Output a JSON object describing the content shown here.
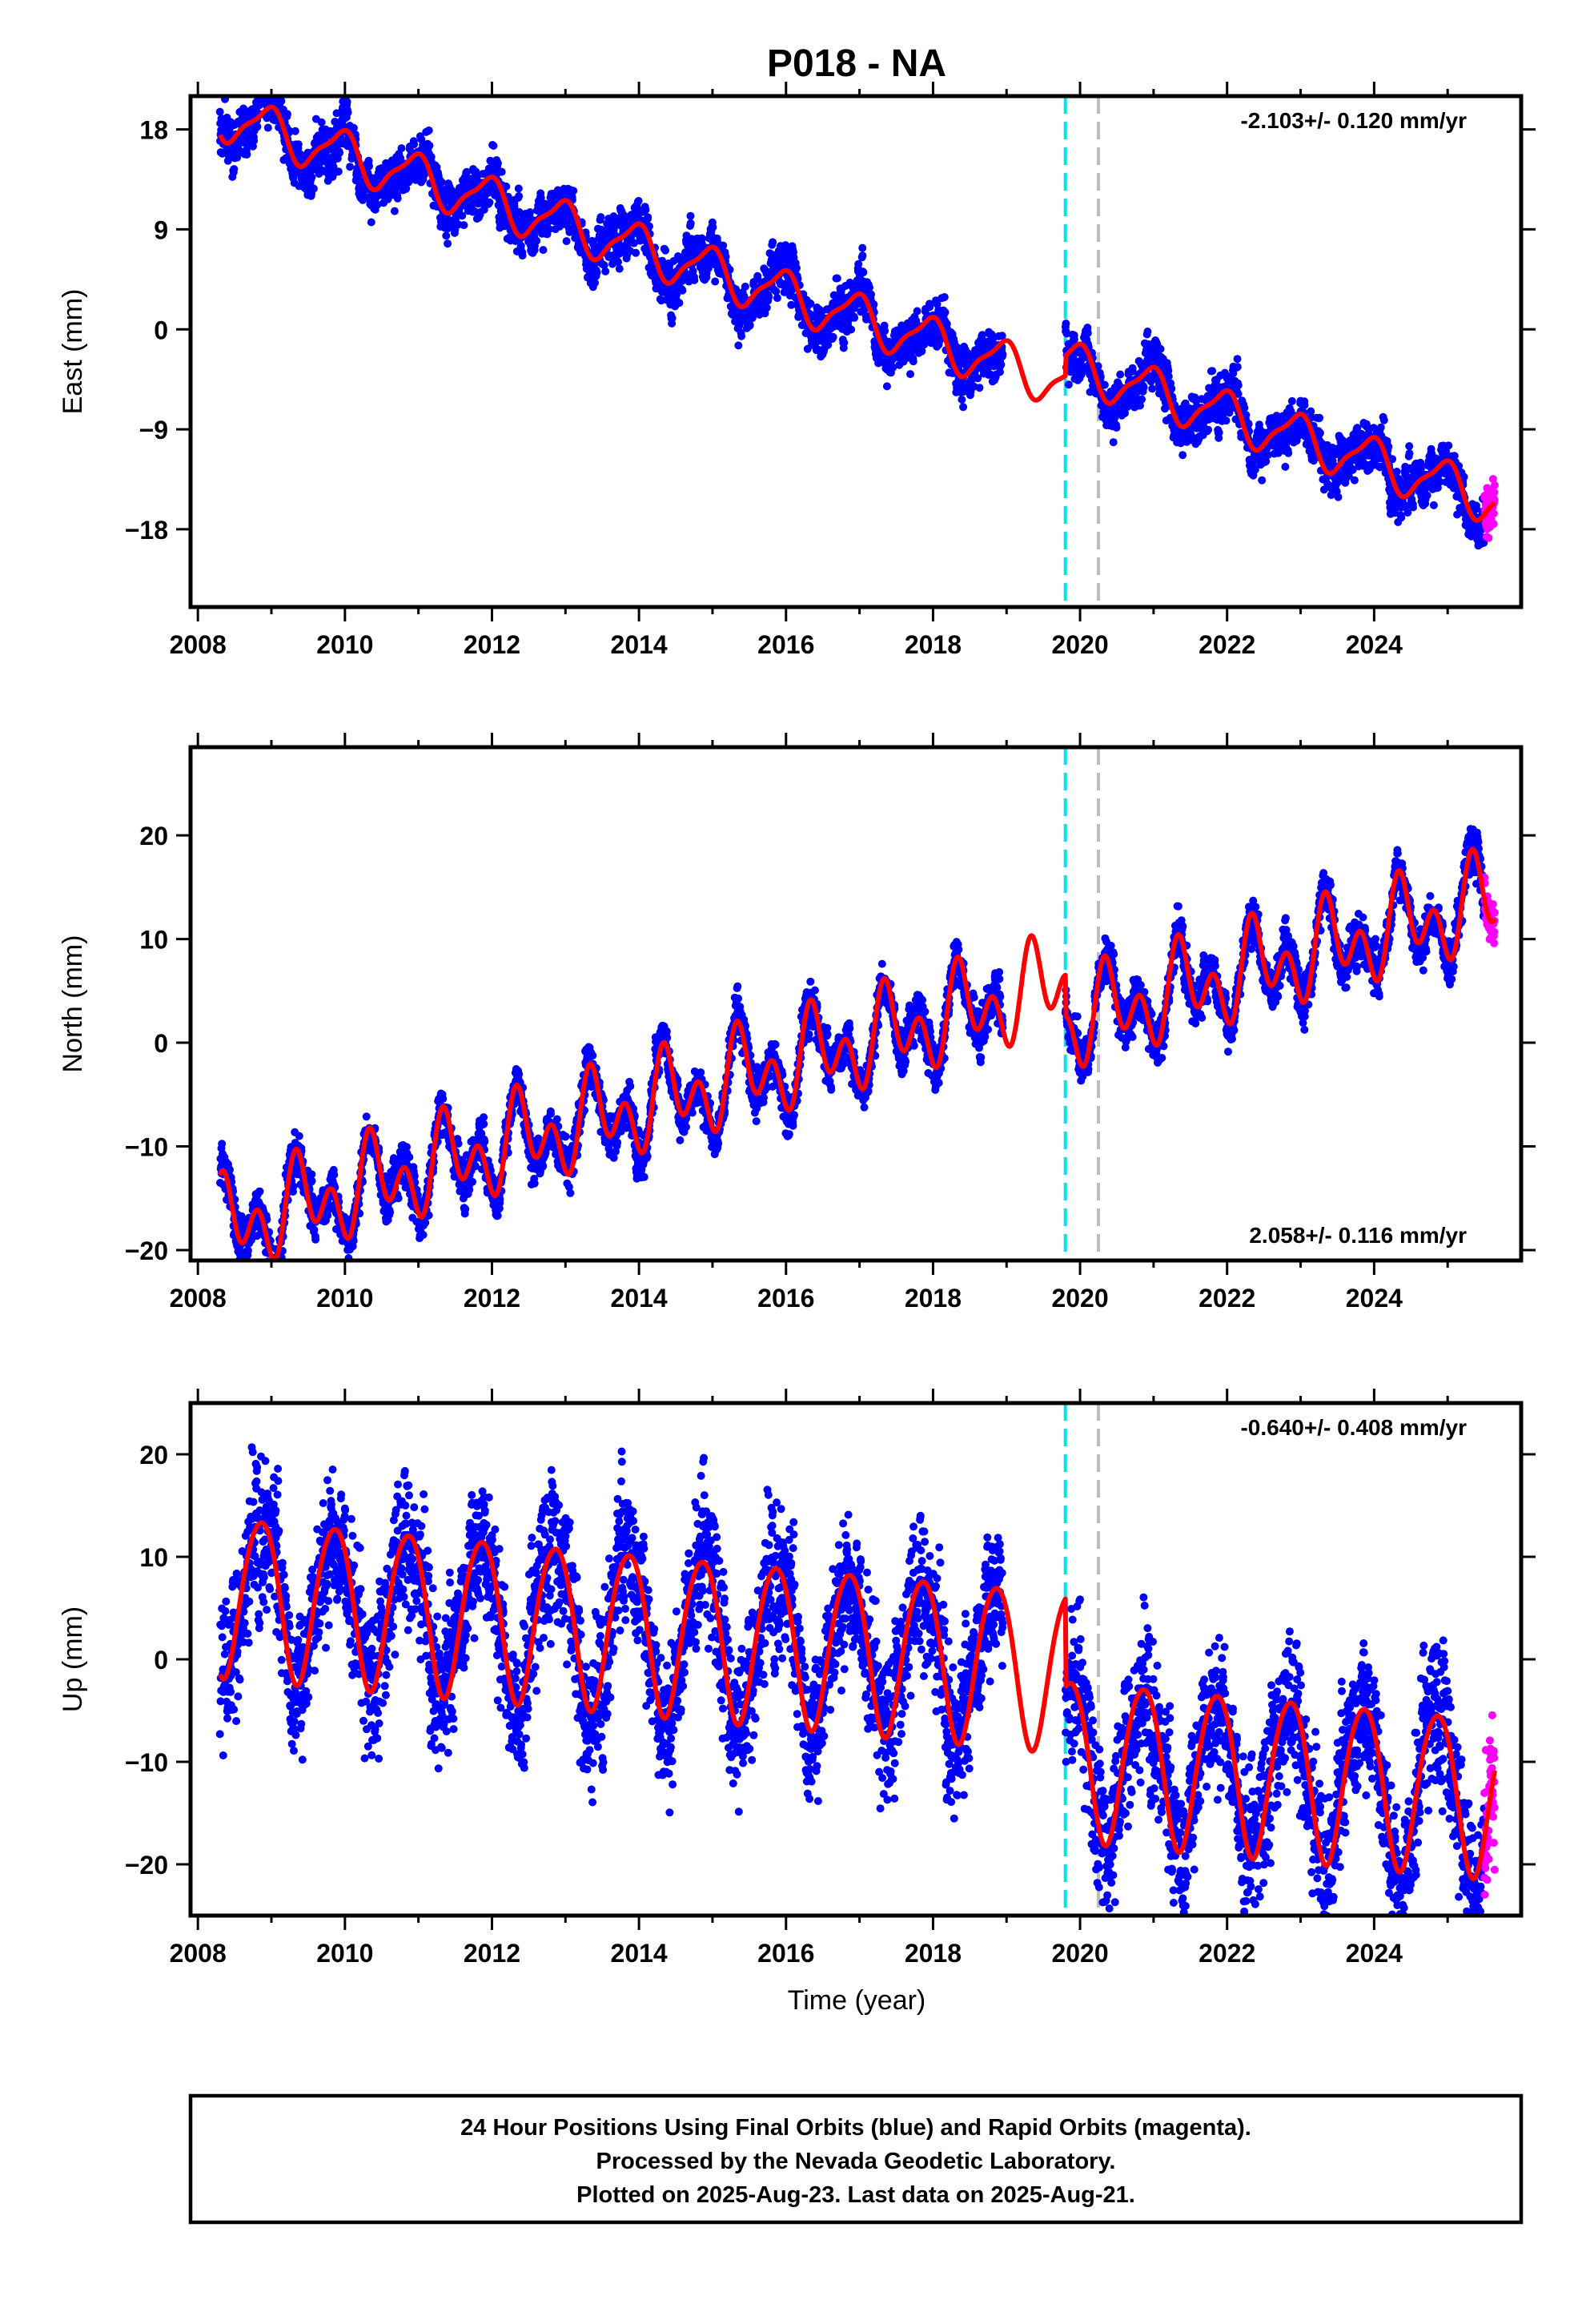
{
  "figure": {
    "title": "P018 - NA",
    "xlabel": "Time (year)",
    "footer_lines": [
      "24 Hour Positions Using Final Orbits (blue) and Rapid Orbits (magenta).",
      "Processed by the Nevada Geodetic Laboratory.",
      "Plotted on 2025-Aug-23. Last data on 2025-Aug-21."
    ],
    "colors": {
      "final_points": "#0000ff",
      "rapid_points": "#ff00ff",
      "model": "#ff0000",
      "cyan_marker": "#00e5ee",
      "gray_marker": "#bebebe"
    }
  },
  "chart_data": [
    {
      "type": "scatter",
      "component": "East",
      "ylabel": "East (mm)",
      "rate": "-2.103+/- 0.120 mm/yr",
      "rate_position": "top-right",
      "xlim": [
        2007.9,
        2026.0
      ],
      "ylim": [
        -25,
        21
      ],
      "xticks": [
        2008,
        2010,
        2012,
        2014,
        2016,
        2018,
        2020,
        2022,
        2024
      ],
      "yticks": [
        18,
        9,
        0,
        -9,
        -18
      ],
      "vlines": [
        {
          "x": 2019.8,
          "color": "#00e5ee",
          "style": "dashed"
        },
        {
          "x": 2020.25,
          "color": "#bebebe",
          "style": "dashed"
        }
      ],
      "data_span": [
        2008.3,
        2025.5
      ],
      "rapid_span": [
        2025.5,
        2025.64
      ],
      "gap": [
        2018.95,
        2019.8
      ],
      "model": {
        "trend": -2.103,
        "t0": 2017.0,
        "offset": 1.0,
        "amp_sin": -0.7,
        "amp_cos": 1.9,
        "semi_sin": 0.5,
        "semi_cos": 0.3,
        "steps": [
          {
            "t": 2019.8,
            "dy": 1.8
          }
        ]
      },
      "noise": {
        "random": 0.9,
        "correlated": 0.9
      },
      "grid": false
    },
    {
      "type": "scatter",
      "component": "North",
      "ylabel": "North (mm)",
      "rate": "2.058+/- 0.116 mm/yr",
      "rate_position": "bottom-right",
      "xlim": [
        2007.9,
        2026.0
      ],
      "ylim": [
        -21,
        28.5
      ],
      "xticks": [
        2008,
        2010,
        2012,
        2014,
        2016,
        2018,
        2020,
        2022,
        2024
      ],
      "yticks": [
        20,
        10,
        0,
        -10,
        -20
      ],
      "vlines": [
        {
          "x": 2019.8,
          "color": "#00e5ee",
          "style": "dashed"
        },
        {
          "x": 2020.25,
          "color": "#bebebe",
          "style": "dashed"
        }
      ],
      "data_span": [
        2008.3,
        2025.5
      ],
      "rapid_span": [
        2025.5,
        2025.64
      ],
      "gap": [
        2018.95,
        2019.8
      ],
      "model": {
        "trend": 2.058,
        "t0": 2017.0,
        "offset": 0.0,
        "amp_sin": 1.6,
        "amp_cos": -2.2,
        "semi_sin": -2.4,
        "semi_cos": -1.9,
        "steps": [
          {
            "t": 2019.8,
            "dy": -4.0
          }
        ]
      },
      "noise": {
        "random": 0.9,
        "correlated": 0.8
      },
      "grid": false
    },
    {
      "type": "scatter",
      "component": "Up",
      "ylabel": "Up (mm)",
      "rate": "-0.640+/- 0.408 mm/yr",
      "rate_position": "top-right",
      "xlim": [
        2007.9,
        2026.0
      ],
      "ylim": [
        -25,
        25
      ],
      "xticks": [
        2008,
        2010,
        2012,
        2014,
        2016,
        2018,
        2020,
        2022,
        2024
      ],
      "yticks": [
        20,
        10,
        0,
        -10,
        -20
      ],
      "vlines": [
        {
          "x": 2019.8,
          "color": "#00e5ee",
          "style": "dashed"
        },
        {
          "x": 2020.25,
          "color": "#bebebe",
          "style": "dashed"
        }
      ],
      "data_span": [
        2008.3,
        2025.5
      ],
      "rapid_span": [
        2025.5,
        2025.64
      ],
      "gap": [
        2018.95,
        2019.8
      ],
      "model": {
        "trend": -0.64,
        "t0": 2017.0,
        "offset": 1.0,
        "amp_sin": -6.2,
        "amp_cos": 4.7,
        "semi_sin": 0.6,
        "semi_cos": 0.4,
        "steps": [
          {
            "t": 2019.8,
            "dy": -8.6
          }
        ]
      },
      "noise": {
        "random": 3.2,
        "correlated": 1.8
      },
      "grid": false
    }
  ]
}
